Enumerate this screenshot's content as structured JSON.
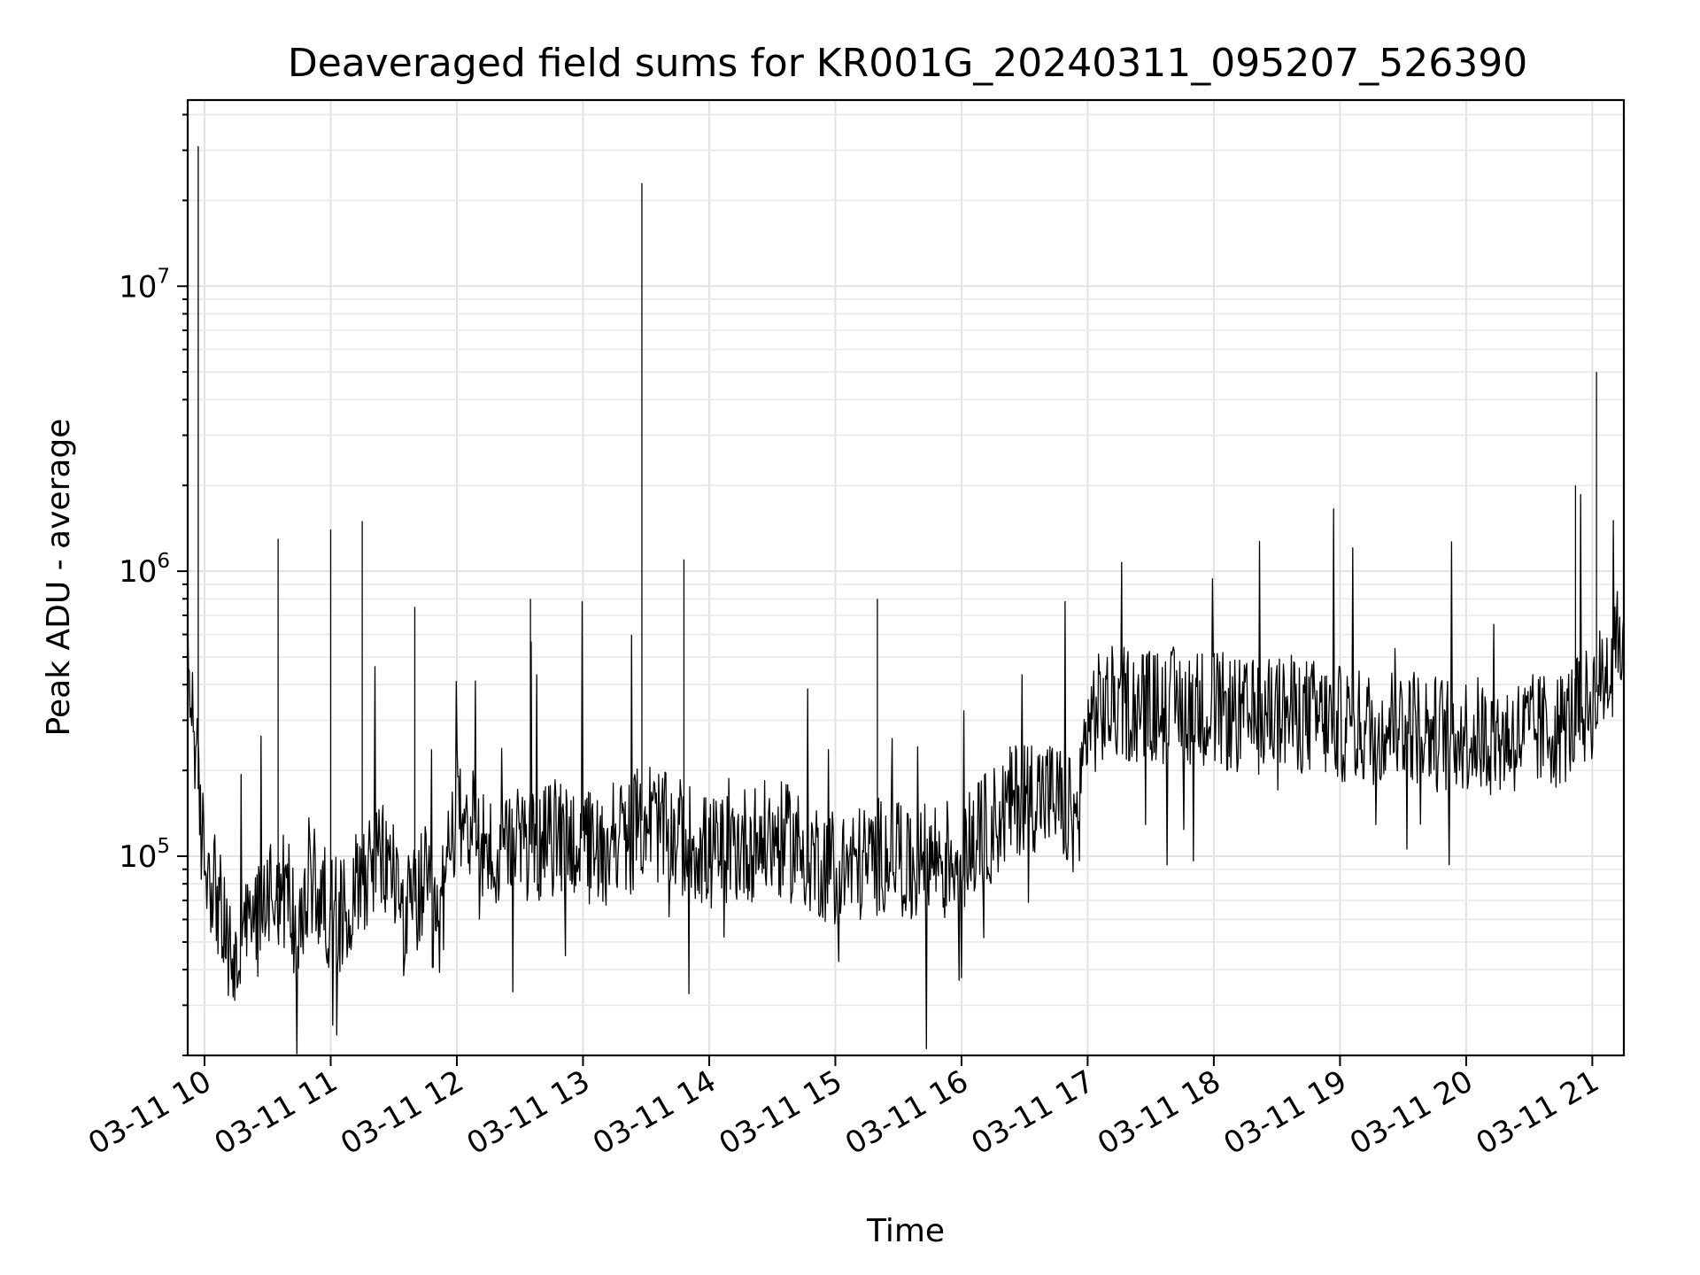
{
  "chart_data": {
    "type": "line",
    "title": "Deaveraged field sums for KR001G_20240311_095207_526390",
    "xlabel": "Time",
    "ylabel": "Peak ADU - average",
    "yscale": "log",
    "grid": true,
    "line_color": "#000000",
    "xlim": [
      "2024-03-11 09:52",
      "2024-03-11 21:15"
    ],
    "ylim": [
      20000,
      45000000
    ],
    "x_ticks": [
      {
        "value": "2024-03-11 10:00",
        "label": "03-11 10"
      },
      {
        "value": "2024-03-11 11:00",
        "label": "03-11 11"
      },
      {
        "value": "2024-03-11 12:00",
        "label": "03-11 12"
      },
      {
        "value": "2024-03-11 13:00",
        "label": "03-11 13"
      },
      {
        "value": "2024-03-11 14:00",
        "label": "03-11 14"
      },
      {
        "value": "2024-03-11 15:00",
        "label": "03-11 15"
      },
      {
        "value": "2024-03-11 16:00",
        "label": "03-11 16"
      },
      {
        "value": "2024-03-11 17:00",
        "label": "03-11 17"
      },
      {
        "value": "2024-03-11 18:00",
        "label": "03-11 18"
      },
      {
        "value": "2024-03-11 19:00",
        "label": "03-11 19"
      },
      {
        "value": "2024-03-11 20:00",
        "label": "03-11 20"
      },
      {
        "value": "2024-03-11 21:00",
        "label": "03-11 21"
      }
    ],
    "y_ticks": [
      {
        "value": 100000,
        "base": "10",
        "exp": "5"
      },
      {
        "value": 1000000,
        "base": "10",
        "exp": "6"
      },
      {
        "value": 10000000,
        "base": "10",
        "exp": "7"
      }
    ],
    "series": [
      {
        "x": [
          "2024-03-11 09:52",
          "2024-03-11 09:55",
          "2024-03-11 09:57",
          "2024-03-11 09:58",
          "2024-03-11 10:00",
          "2024-03-11 10:05",
          "2024-03-11 10:10",
          "2024-03-11 10:15",
          "2024-03-11 10:20",
          "2024-03-11 10:25",
          "2024-03-11 10:30",
          "2024-03-11 10:35",
          "2024-03-11 10:40",
          "2024-03-11 10:45",
          "2024-03-11 10:50",
          "2024-03-11 10:55",
          "2024-03-11 11:00",
          "2024-03-11 11:05",
          "2024-03-11 11:10",
          "2024-03-11 11:15",
          "2024-03-11 11:20",
          "2024-03-11 11:30",
          "2024-03-11 11:35",
          "2024-03-11 11:40",
          "2024-03-11 11:45",
          "2024-03-11 11:50",
          "2024-03-11 12:00",
          "2024-03-11 12:10",
          "2024-03-11 12:20",
          "2024-03-11 12:30",
          "2024-03-11 12:35",
          "2024-03-11 12:40",
          "2024-03-11 12:50",
          "2024-03-11 13:00",
          "2024-03-11 13:10",
          "2024-03-11 13:15",
          "2024-03-11 13:20",
          "2024-03-11 13:28",
          "2024-03-11 13:30",
          "2024-03-11 13:40",
          "2024-03-11 13:48",
          "2024-03-11 13:55",
          "2024-03-11 14:00",
          "2024-03-11 14:15",
          "2024-03-11 14:30",
          "2024-03-11 14:40",
          "2024-03-11 15:00",
          "2024-03-11 15:15",
          "2024-03-11 15:20",
          "2024-03-11 15:30",
          "2024-03-11 15:35",
          "2024-03-11 15:45",
          "2024-03-11 16:00",
          "2024-03-11 16:15",
          "2024-03-11 16:30",
          "2024-03-11 16:45",
          "2024-03-11 16:55",
          "2024-03-11 17:00",
          "2024-03-11 17:05",
          "2024-03-11 17:15",
          "2024-03-11 17:30",
          "2024-03-11 17:45",
          "2024-03-11 18:00",
          "2024-03-11 18:15",
          "2024-03-11 18:30",
          "2024-03-11 18:45",
          "2024-03-11 19:00",
          "2024-03-11 19:15",
          "2024-03-11 19:30",
          "2024-03-11 19:45",
          "2024-03-11 20:00",
          "2024-03-11 20:15",
          "2024-03-11 20:30",
          "2024-03-11 20:45",
          "2024-03-11 20:52",
          "2024-03-11 21:00",
          "2024-03-11 21:02",
          "2024-03-11 21:10",
          "2024-03-11 21:15"
        ],
        "values": [
          450000,
          300000,
          31000000,
          130000,
          100000,
          80000,
          50000,
          40000,
          55000,
          60000,
          80000,
          1300000,
          75000,
          45000,
          90000,
          70000,
          1400000,
          60000,
          75000,
          1500000,
          100000,
          90000,
          60000,
          750000,
          80000,
          50000,
          150000,
          120000,
          90000,
          110000,
          800000,
          110000,
          120000,
          110000,
          100000,
          130000,
          110000,
          23000000,
          140000,
          120000,
          1100000,
          110000,
          100000,
          110000,
          115000,
          110000,
          90000,
          95000,
          800000,
          110000,
          85000,
          100000,
          100000,
          130000,
          170000,
          160000,
          130000,
          300000,
          320000,
          350000,
          330000,
          340000,
          330000,
          300000,
          320000,
          310000,
          290000,
          280000,
          300000,
          270000,
          270000,
          260000,
          270000,
          280000,
          2000000,
          350000,
          5000000,
          500000,
          600000
        ]
      }
    ]
  }
}
